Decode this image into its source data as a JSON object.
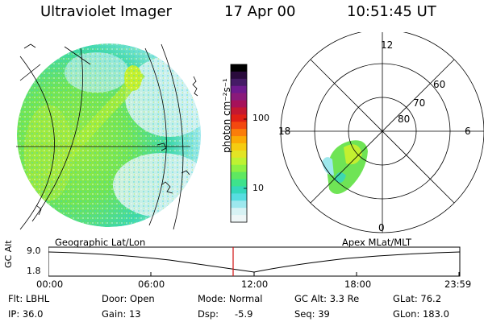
{
  "header": {
    "title": "Ultraviolet Imager",
    "date": "17 Apr 00",
    "time": "10:51:45 UT"
  },
  "colorbar": {
    "unit_label": "photon cm⁻²s⁻¹",
    "ticks": [
      "100",
      "10"
    ],
    "colors": [
      "#000000",
      "#2a0b3c",
      "#451b66",
      "#6e1a8d",
      "#8a1a7a",
      "#a6125a",
      "#c41830",
      "#e02015",
      "#f34810",
      "#fb7d0a",
      "#fbaa05",
      "#f5cc10",
      "#e2e425",
      "#bef232",
      "#8ef043",
      "#5fe860",
      "#3ee28c",
      "#35d8bb",
      "#57dde0",
      "#9de8ee",
      "#d7f2f4",
      "#eef6f7"
    ]
  },
  "polar": {
    "hour_labels": [
      "12",
      "18",
      "6",
      "0"
    ],
    "lat_labels": [
      "60",
      "70",
      "80"
    ]
  },
  "timeline": {
    "left_label": "Geographic Lat/Lon",
    "right_label": "Apex MLat/MLT",
    "axis_label": "GC Alt",
    "y_ticks": [
      "9.0",
      "1.8"
    ],
    "x_ticks": [
      "00:00",
      "06:00",
      "12:00",
      "18:00",
      "23:59"
    ],
    "current_marker": "10:51:45"
  },
  "info": {
    "flt": "Flt: LBHL",
    "door": "Door: Open",
    "mode": "Mode: Normal",
    "gc_alt": "GC Alt: 3.3 Re",
    "glat": "GLat: 76.2",
    "ip": "IP: 36.0",
    "gain": "Gain: 13",
    "dsp_label": "Dsp:",
    "dsp_value": "-5.9",
    "seq": "Seq: 39",
    "glon": "GLon: 183.0"
  }
}
